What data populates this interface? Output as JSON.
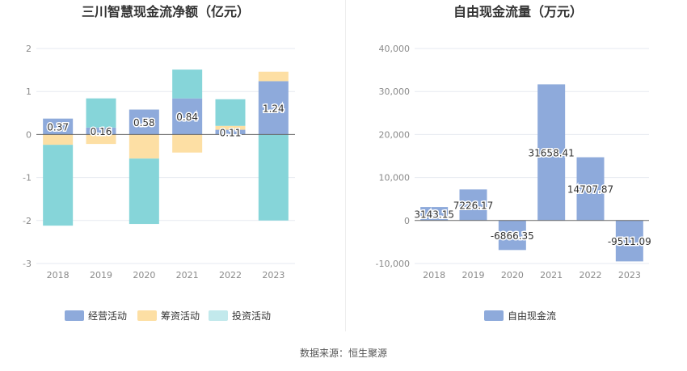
{
  "source": "数据来源：恒生聚源",
  "chart_data": [
    {
      "type": "bar",
      "stacked": true,
      "title": "三川智慧现金流净额（亿元）",
      "categories": [
        "2018",
        "2019",
        "2020",
        "2021",
        "2022",
        "2023"
      ],
      "ylim": [
        -3,
        2
      ],
      "yticks": [
        2,
        1,
        0,
        -1,
        -2,
        -3
      ],
      "grid": true,
      "legend_position": "bottom",
      "series": [
        {
          "name": "经营活动",
          "color": "#8eaadb",
          "values": [
            0.37,
            0.16,
            0.58,
            0.84,
            0.11,
            1.24
          ]
        },
        {
          "name": "筹资活动",
          "color": "#fddfa4",
          "values": [
            -0.24,
            -0.22,
            -0.56,
            -0.42,
            0.09,
            0.22
          ]
        },
        {
          "name": "投资活动",
          "color": "#86d5d9",
          "values": [
            -1.88,
            0.68,
            -1.52,
            0.67,
            0.62,
            -2.0
          ]
        }
      ],
      "labels": [
        "0.37",
        "0.16",
        "0.58",
        "0.84",
        "0.11",
        "1.24"
      ]
    },
    {
      "type": "bar",
      "title": "自由现金流量（万元）",
      "categories": [
        "2018",
        "2019",
        "2020",
        "2021",
        "2022",
        "2023"
      ],
      "ylim": [
        -10000,
        40000
      ],
      "yticks": [
        40000,
        30000,
        20000,
        10000,
        0,
        -10000
      ],
      "ytick_labels": [
        "40,000",
        "30,000",
        "20,000",
        "10,000",
        "0",
        "-10,000"
      ],
      "grid": true,
      "legend_position": "bottom",
      "series": [
        {
          "name": "自由现金流",
          "color": "#8eaadb",
          "values": [
            3143.15,
            7226.17,
            -6866.35,
            31658.41,
            14707.87,
            -9511.09
          ]
        }
      ],
      "labels": [
        "3143.15",
        "7226.17",
        "-6866.35",
        "31658.41",
        "14707.87",
        "-9511.09"
      ]
    }
  ]
}
